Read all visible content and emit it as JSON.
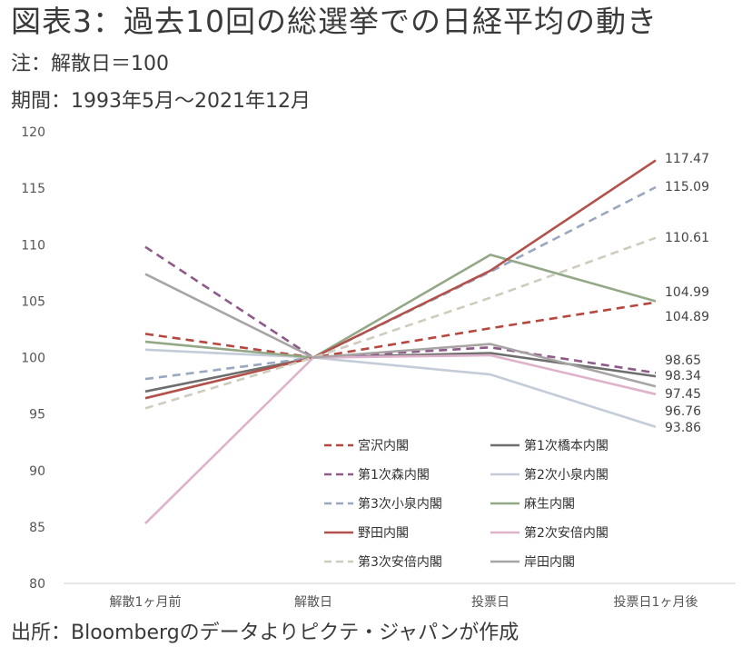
{
  "title": "図表3：過去10回の総選挙での日経平均の動き",
  "note": "注：解散日＝100",
  "period": "期間：1993年5月〜2021年12月",
  "source": "出所：Bloombergのデータよりピクテ・ジャパンが作成",
  "chart_data": {
    "type": "line",
    "title": "図表3：過去10回の総選挙での日経平均の動き",
    "xlabel": "",
    "ylabel": "",
    "categories": [
      "解散1ヶ月前",
      "解散日",
      "投票日",
      "投票日1ヶ月後"
    ],
    "ylim": [
      80,
      120
    ],
    "yticks": [
      80,
      85,
      90,
      95,
      100,
      105,
      110,
      115,
      120
    ],
    "grid": false,
    "legend": "bottom-right",
    "series": [
      {
        "name": "宮沢内閣",
        "values": [
          102.1,
          100,
          102.6,
          104.89
        ],
        "color": "#b5473f",
        "dash": "dashed",
        "label": ""
      },
      {
        "name": "第1次橋本内閣",
        "values": [
          97.0,
          100,
          100.4,
          98.34
        ],
        "color": "#6e6e6e",
        "dash": "solid",
        "label": "98.34"
      },
      {
        "name": "第1次森内閣",
        "values": [
          109.8,
          100,
          100.9,
          98.65
        ],
        "color": "#8e5a8a",
        "dash": "dashed",
        "label": "98.65"
      },
      {
        "name": "第2次小泉内閣",
        "values": [
          100.7,
          100,
          98.5,
          93.86
        ],
        "color": "#c3ccd8",
        "dash": "solid",
        "label": "93.86"
      },
      {
        "name": "第3次小泉内閣",
        "values": [
          98.1,
          100,
          107.6,
          115.09
        ],
        "color": "#9aa7c0",
        "dash": "dashed",
        "label": "115.09"
      },
      {
        "name": "麻生内閣",
        "values": [
          101.4,
          100,
          109.1,
          104.99
        ],
        "color": "#93a886",
        "dash": "solid",
        "label": "104.99"
      },
      {
        "name": "野田内閣",
        "values": [
          96.4,
          100,
          107.7,
          117.47
        ],
        "color": "#b2514b",
        "dash": "solid",
        "label": "117.47"
      },
      {
        "name": "第2次安倍内閣",
        "values": [
          85.3,
          100,
          100.2,
          96.76
        ],
        "color": "#dfb2cb",
        "dash": "solid",
        "label": "96.76"
      },
      {
        "name": "第3次安倍内閣",
        "values": [
          95.5,
          100,
          105.3,
          110.61
        ],
        "color": "#cfcbbd",
        "dash": "dashed",
        "label": "110.61"
      },
      {
        "name": "岸田内閣",
        "values": [
          107.4,
          100,
          101.2,
          97.45
        ],
        "color": "#a8a4a4",
        "dash": "solid",
        "label": "97.45"
      }
    ],
    "extra_labels": [
      "104.89"
    ]
  }
}
